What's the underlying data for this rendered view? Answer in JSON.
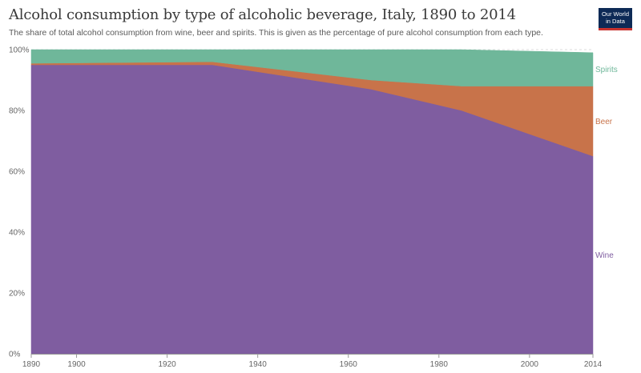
{
  "header": {
    "title": "Alcohol consumption by type of alcoholic beverage, Italy, 1890 to 2014",
    "subtitle": "The share of total alcohol consumption from wine, beer and spirits. This is given as the percentage of pure alcohol consumption from each type.",
    "logo_line1": "Our World",
    "logo_line2": "in Data"
  },
  "colors": {
    "wine": "#7f5da0",
    "beer": "#c8734a",
    "spirits": "#6fb79a",
    "grid": "#dddddd",
    "axis": "#999999"
  },
  "chart_data": {
    "type": "area",
    "stacked": true,
    "title": "Alcohol consumption by type of alcoholic beverage, Italy, 1890 to 2014",
    "x": [
      1890,
      1930,
      1965,
      1985,
      2014
    ],
    "series": [
      {
        "name": "Wine",
        "values": [
          95,
          95,
          87,
          80,
          65
        ]
      },
      {
        "name": "Beer",
        "values": [
          0.5,
          1,
          3,
          8,
          23
        ]
      },
      {
        "name": "Spirits",
        "values": [
          4.5,
          4,
          10,
          12,
          11
        ]
      }
    ],
    "xlim": [
      1890,
      2014
    ],
    "ylim": [
      0,
      100
    ],
    "x_ticks": [
      1890,
      1900,
      1920,
      1940,
      1960,
      1980,
      2000,
      2014
    ],
    "y_ticks": [
      {
        "value": 0,
        "label": "0%"
      },
      {
        "value": 20,
        "label": "20%"
      },
      {
        "value": 40,
        "label": "40%"
      },
      {
        "value": 60,
        "label": "60%"
      },
      {
        "value": 80,
        "label": "80%"
      },
      {
        "value": 100,
        "label": "100%"
      }
    ],
    "grid": true,
    "legend": "inline-right"
  }
}
